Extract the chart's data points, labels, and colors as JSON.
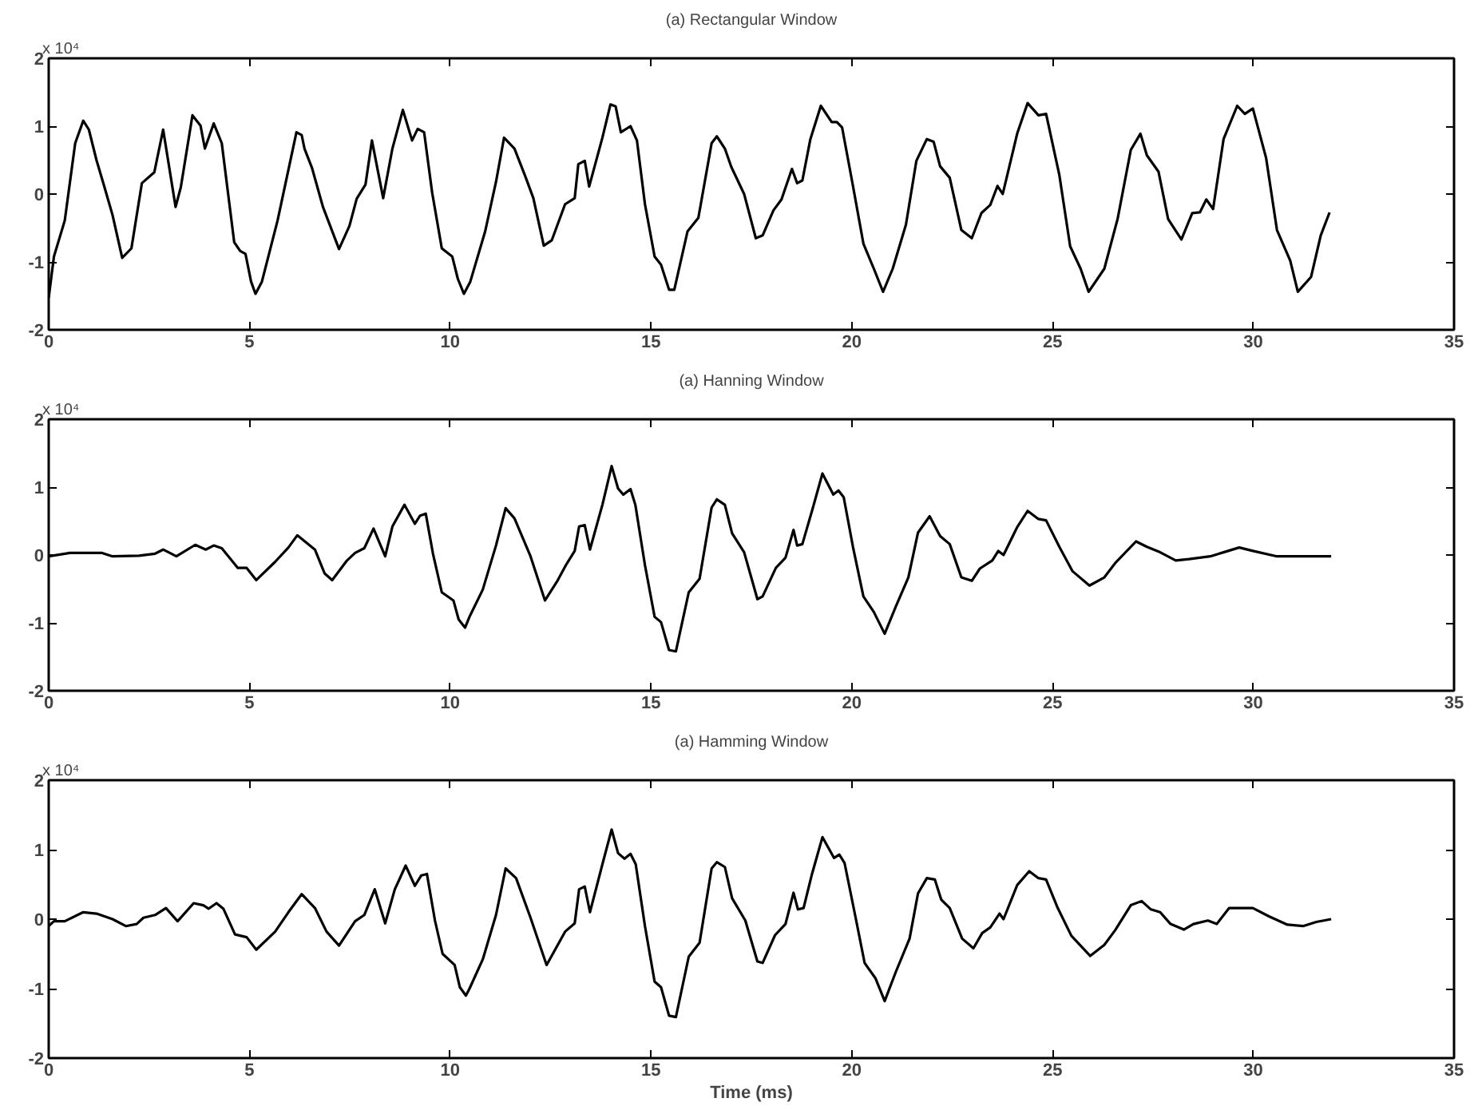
{
  "chart_data": [
    {
      "type": "line",
      "title": "(a) Rectangular Window",
      "annotations": [
        "x 10⁴"
      ],
      "xlim": [
        0,
        35
      ],
      "ylim": [
        -2,
        2
      ],
      "xticks": [
        0,
        5,
        10,
        15,
        20,
        25,
        30,
        35
      ],
      "yticks": [
        -2,
        -1,
        0,
        1,
        2
      ],
      "grid": false,
      "line_style": "solid",
      "series": [
        {
          "color": "#000000",
          "x": [
            0,
            0.13,
            0.4,
            0.66,
            0.86,
            1.0,
            1.19,
            1.39,
            1.59,
            1.83,
            2.06,
            2.32,
            2.63,
            2.85,
            3.16,
            3.29,
            3.58,
            3.78,
            3.89,
            4.11,
            4.31,
            4.62,
            4.77,
            4.9,
            5.04,
            5.15,
            5.31,
            5.7,
            6.17,
            6.3,
            6.37,
            6.56,
            6.83,
            7.23,
            7.49,
            7.67,
            7.89,
            8.05,
            8.33,
            8.56,
            8.82,
            9.05,
            9.19,
            9.35,
            9.55,
            9.79,
            10.05,
            10.19,
            10.34,
            10.5,
            10.87,
            11.14,
            11.34,
            11.6,
            11.87,
            12.07,
            12.33,
            12.53,
            12.86,
            13.1,
            13.19,
            13.35,
            13.46,
            13.79,
            13.99,
            14.12,
            14.25,
            14.49,
            14.65,
            14.85,
            15.09,
            15.25,
            15.45,
            15.58,
            15.91,
            16.18,
            16.51,
            16.64,
            16.84,
            17.0,
            17.32,
            17.61,
            17.78,
            18.05,
            18.25,
            18.51,
            18.64,
            18.77,
            18.97,
            19.23,
            19.5,
            19.63,
            19.76,
            20.03,
            20.29,
            20.55,
            20.78,
            21.02,
            21.35,
            21.61,
            21.87,
            22.04,
            22.2,
            22.44,
            22.73,
            22.99,
            23.23,
            23.45,
            23.63,
            23.76,
            24.12,
            24.38,
            24.65,
            24.84,
            25.17,
            25.44,
            25.7,
            25.9,
            26.29,
            26.62,
            26.95,
            27.19,
            27.35,
            27.64,
            27.88,
            28.21,
            28.48,
            28.67,
            28.83,
            29.0,
            29.26,
            29.6,
            29.79,
            29.99,
            30.32,
            30.59,
            30.92,
            31.11,
            31.44,
            31.68,
            31.9
          ],
          "values": [
            -1.53,
            -0.92,
            -0.39,
            0.75,
            1.08,
            0.95,
            0.5,
            0.1,
            -0.31,
            -0.94,
            -0.8,
            0.16,
            0.32,
            0.95,
            -0.19,
            0.1,
            1.16,
            1.01,
            0.67,
            1.04,
            0.75,
            -0.71,
            -0.84,
            -0.88,
            -1.29,
            -1.47,
            -1.29,
            -0.39,
            0.91,
            0.87,
            0.67,
            0.38,
            -0.19,
            -0.81,
            -0.47,
            -0.07,
            0.14,
            0.79,
            -0.06,
            0.67,
            1.24,
            0.79,
            0.96,
            0.91,
            0.02,
            -0.8,
            -0.92,
            -1.25,
            -1.47,
            -1.29,
            -0.55,
            0.18,
            0.83,
            0.67,
            0.26,
            -0.06,
            -0.76,
            -0.68,
            -0.15,
            -0.06,
            0.44,
            0.49,
            0.11,
            0.83,
            1.32,
            1.29,
            0.91,
            1.0,
            0.79,
            -0.15,
            -0.92,
            -1.04,
            -1.41,
            -1.41,
            -0.55,
            -0.35,
            0.75,
            0.85,
            0.67,
            0.4,
            0,
            -0.65,
            -0.61,
            -0.24,
            -0.08,
            0.37,
            0.16,
            0.2,
            0.81,
            1.3,
            1.06,
            1.06,
            0.98,
            0.12,
            -0.73,
            -1.1,
            -1.44,
            -1.1,
            -0.45,
            0.49,
            0.81,
            0.77,
            0.41,
            0.24,
            -0.53,
            -0.65,
            -0.28,
            -0.16,
            0.12,
            0,
            0.89,
            1.34,
            1.16,
            1.18,
            0.28,
            -0.77,
            -1.1,
            -1.44,
            -1.1,
            -0.37,
            0.65,
            0.89,
            0.57,
            0.33,
            -0.37,
            -0.67,
            -0.28,
            -0.27,
            -0.08,
            -0.22,
            0.81,
            1.3,
            1.18,
            1.26,
            0.53,
            -0.53,
            -0.98,
            -1.44,
            -1.22,
            -0.61,
            -0.27
          ]
        }
      ]
    },
    {
      "type": "line",
      "title": "(a) Hanning Window",
      "annotations": [
        "x 10⁴"
      ],
      "xlim": [
        0,
        35
      ],
      "ylim": [
        -2,
        2
      ],
      "xticks": [
        0,
        5,
        10,
        15,
        20,
        25,
        30,
        35
      ],
      "yticks": [
        -2,
        -1,
        0,
        1,
        2
      ],
      "grid": false,
      "line_style": "solid",
      "series": [
        {
          "color": "#000000",
          "x": [
            0,
            0.53,
            1.33,
            1.59,
            2.25,
            2.65,
            2.85,
            3.18,
            3.65,
            3.91,
            4.11,
            4.31,
            4.71,
            4.93,
            5.17,
            5.64,
            5.97,
            6.19,
            6.63,
            6.87,
            7.06,
            7.43,
            7.63,
            7.86,
            8.09,
            8.38,
            8.56,
            8.86,
            9.12,
            9.25,
            9.39,
            9.57,
            9.79,
            10.08,
            10.21,
            10.37,
            10.48,
            10.81,
            11.14,
            11.38,
            11.6,
            12.0,
            12.36,
            12.66,
            12.88,
            13.1,
            13.21,
            13.35,
            13.48,
            13.79,
            14.02,
            14.18,
            14.31,
            14.49,
            14.61,
            14.85,
            15.09,
            15.25,
            15.45,
            15.62,
            15.94,
            16.21,
            16.51,
            16.64,
            16.84,
            17.02,
            17.32,
            17.65,
            17.78,
            18.11,
            18.35,
            18.55,
            18.64,
            18.77,
            19.01,
            19.27,
            19.54,
            19.67,
            19.8,
            20.03,
            20.29,
            20.55,
            20.82,
            21.09,
            21.41,
            21.65,
            21.94,
            22.2,
            22.44,
            22.73,
            22.99,
            23.19,
            23.5,
            23.65,
            23.78,
            24.12,
            24.38,
            24.65,
            24.84,
            25.17,
            25.5,
            25.92,
            26.29,
            26.56,
            27.08,
            27.35,
            27.68,
            28.07,
            28.4,
            28.93,
            29.26,
            29.65,
            29.99,
            30.59,
            31.31,
            31.94
          ],
          "values": [
            -0.02,
            0.03,
            0.03,
            -0.02,
            -0.01,
            0.02,
            0.08,
            -0.02,
            0.15,
            0.08,
            0.14,
            0.1,
            -0.19,
            -0.19,
            -0.37,
            -0.1,
            0.11,
            0.29,
            0.08,
            -0.27,
            -0.37,
            -0.08,
            0.03,
            0.1,
            0.39,
            -0.02,
            0.42,
            0.74,
            0.46,
            0.58,
            0.61,
            0.02,
            -0.55,
            -0.67,
            -0.95,
            -1.07,
            -0.91,
            -0.51,
            0.14,
            0.69,
            0.54,
            -0.02,
            -0.67,
            -0.39,
            -0.15,
            0.06,
            0.42,
            0.44,
            0.08,
            0.74,
            1.31,
            0.98,
            0.89,
            0.97,
            0.74,
            -0.15,
            -0.91,
            -0.99,
            -1.4,
            -1.42,
            -0.55,
            -0.35,
            0.7,
            0.82,
            0.74,
            0.32,
            0.04,
            -0.65,
            -0.61,
            -0.19,
            -0.04,
            0.37,
            0.14,
            0.16,
            0.65,
            1.2,
            0.89,
            0.95,
            0.85,
            0.12,
            -0.61,
            -0.84,
            -1.16,
            -0.77,
            -0.33,
            0.33,
            0.57,
            0.28,
            0.16,
            -0.33,
            -0.38,
            -0.2,
            -0.08,
            0.06,
            0,
            0.41,
            0.65,
            0.53,
            0.51,
            0.12,
            -0.24,
            -0.45,
            -0.33,
            -0.12,
            0.2,
            0.12,
            0.04,
            -0.08,
            -0.06,
            -0.02,
            0.04,
            0.11,
            0.06,
            -0.02,
            -0.02,
            -0.02
          ]
        }
      ]
    },
    {
      "type": "line",
      "title": "(a) Hamming Window",
      "xlabel": "Time (ms)",
      "annotations": [
        "x 10⁴"
      ],
      "xlim": [
        0,
        35
      ],
      "ylim": [
        -2,
        2
      ],
      "xticks": [
        0,
        5,
        10,
        15,
        20,
        25,
        30,
        35
      ],
      "yticks": [
        -2,
        -1,
        0,
        1,
        2
      ],
      "grid": false,
      "line_style": "solid",
      "series": [
        {
          "color": "#000000",
          "x": [
            0,
            0.13,
            0.4,
            0.86,
            1.19,
            1.59,
            1.92,
            2.19,
            2.36,
            2.65,
            2.92,
            3.21,
            3.61,
            3.85,
            3.98,
            4.18,
            4.35,
            4.64,
            4.93,
            5.17,
            5.64,
            5.97,
            6.3,
            6.63,
            6.92,
            7.23,
            7.63,
            7.86,
            8.12,
            8.38,
            8.62,
            8.89,
            9.12,
            9.28,
            9.42,
            9.62,
            9.81,
            10.11,
            10.24,
            10.39,
            10.48,
            10.81,
            11.14,
            11.38,
            11.64,
            12.0,
            12.4,
            12.86,
            13.1,
            13.21,
            13.35,
            13.48,
            13.79,
            14.02,
            14.18,
            14.34,
            14.49,
            14.62,
            14.85,
            15.09,
            15.25,
            15.45,
            15.62,
            15.94,
            16.21,
            16.51,
            16.64,
            16.84,
            17.02,
            17.35,
            17.65,
            17.78,
            18.09,
            18.35,
            18.55,
            18.66,
            18.8,
            19.01,
            19.27,
            19.56,
            19.69,
            19.82,
            20.09,
            20.32,
            20.59,
            20.82,
            21.09,
            21.44,
            21.65,
            21.87,
            22.07,
            22.23,
            22.44,
            22.75,
            23.03,
            23.25,
            23.45,
            23.68,
            23.78,
            24.12,
            24.42,
            24.65,
            24.84,
            25.13,
            25.47,
            25.94,
            26.29,
            26.56,
            26.95,
            27.22,
            27.45,
            27.68,
            27.94,
            28.27,
            28.51,
            28.87,
            29.09,
            29.4,
            29.99,
            30.39,
            30.85,
            31.24,
            31.57,
            31.94
          ],
          "values": [
            -0.1,
            -0.03,
            -0.03,
            0.1,
            0.08,
            0,
            -0.1,
            -0.07,
            0.02,
            0.06,
            0.16,
            -0.03,
            0.23,
            0.2,
            0.15,
            0.23,
            0.15,
            -0.22,
            -0.26,
            -0.44,
            -0.18,
            0.1,
            0.36,
            0.16,
            -0.18,
            -0.38,
            -0.03,
            0.06,
            0.43,
            -0.06,
            0.43,
            0.77,
            0.48,
            0.63,
            0.65,
            -0.02,
            -0.5,
            -0.66,
            -0.98,
            -1.1,
            -1.0,
            -0.58,
            0.06,
            0.73,
            0.59,
            0.02,
            -0.66,
            -0.18,
            -0.06,
            0.43,
            0.47,
            0.1,
            0.79,
            1.29,
            0.95,
            0.87,
            0.94,
            0.79,
            -0.1,
            -0.9,
            -0.98,
            -1.39,
            -1.41,
            -0.54,
            -0.34,
            0.73,
            0.82,
            0.75,
            0.3,
            -0.02,
            -0.61,
            -0.63,
            -0.23,
            -0.07,
            0.38,
            0.14,
            0.16,
            0.65,
            1.18,
            0.88,
            0.93,
            0.81,
            0.04,
            -0.63,
            -0.85,
            -1.18,
            -0.77,
            -0.28,
            0.37,
            0.59,
            0.57,
            0.28,
            0.16,
            -0.28,
            -0.42,
            -0.2,
            -0.12,
            0.08,
            0,
            0.49,
            0.69,
            0.59,
            0.57,
            0.16,
            -0.24,
            -0.53,
            -0.37,
            -0.16,
            0.2,
            0.26,
            0.14,
            0.1,
            -0.07,
            -0.15,
            -0.07,
            -0.02,
            -0.07,
            0.16,
            0.16,
            0.04,
            -0.08,
            -0.1,
            -0.04,
            0
          ]
        }
      ]
    }
  ]
}
